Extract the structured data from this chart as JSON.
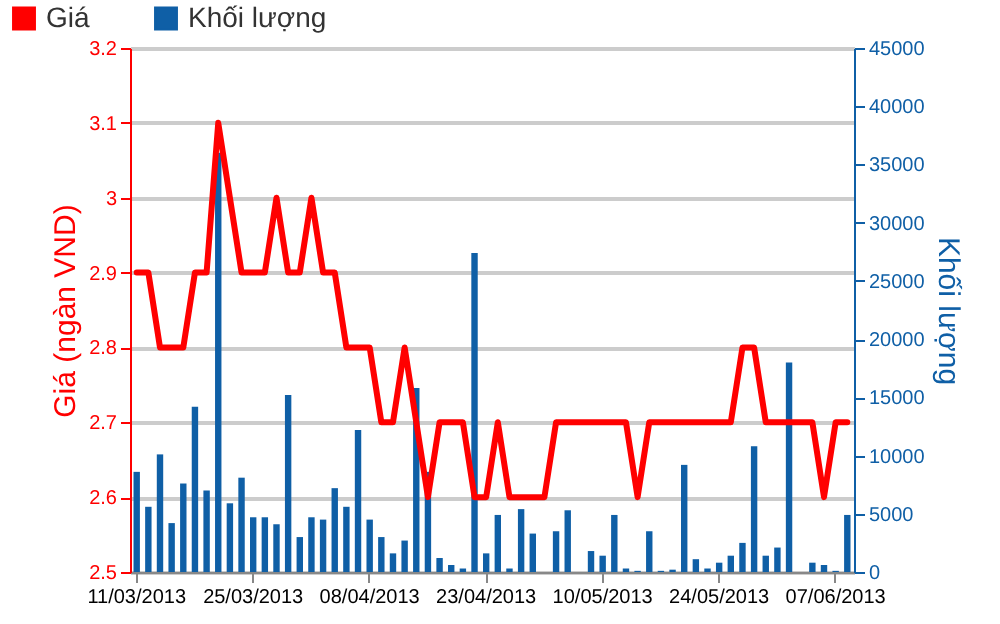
{
  "chart_data": {
    "type": "line",
    "ylabel": "Giá (ngàn VND)",
    "y2label": "Khối lượng",
    "categories": [
      "11/03/2013",
      null,
      null,
      null,
      null,
      null,
      null,
      null,
      null,
      null,
      "25/03/2013",
      null,
      null,
      null,
      null,
      null,
      null,
      null,
      null,
      null,
      "08/04/2013",
      null,
      null,
      null,
      null,
      null,
      null,
      null,
      null,
      null,
      "23/04/2013",
      null,
      null,
      null,
      null,
      null,
      null,
      null,
      null,
      null,
      "10/05/2013",
      null,
      null,
      null,
      null,
      null,
      null,
      null,
      null,
      null,
      "24/05/2013",
      null,
      null,
      null,
      null,
      null,
      null,
      null,
      null,
      null,
      "07/06/2013",
      null
    ],
    "series": [
      {
        "name": "Giá",
        "color": "#ff0000",
        "values": [
          2.9,
          2.9,
          2.8,
          2.8,
          2.8,
          2.9,
          2.9,
          3.1,
          3.0,
          2.9,
          2.9,
          2.9,
          3.0,
          2.9,
          2.9,
          3.0,
          2.9,
          2.9,
          2.8,
          2.8,
          2.8,
          2.7,
          2.7,
          2.8,
          2.7,
          2.6,
          2.7,
          2.7,
          2.7,
          2.6,
          2.6,
          2.7,
          2.6,
          2.6,
          2.6,
          2.6,
          2.7,
          2.7,
          2.7,
          2.7,
          2.7,
          2.7,
          2.7,
          2.6,
          2.7,
          2.7,
          2.7,
          2.7,
          2.7,
          2.7,
          2.7,
          2.7,
          2.8,
          2.8,
          2.7,
          2.7,
          2.7,
          2.7,
          2.7,
          2.6,
          2.7,
          2.7
        ]
      },
      {
        "name": "Khối lượng",
        "type": "bar",
        "axis": "y2",
        "color": "#0f5fa6",
        "values": [
          8600,
          5600,
          10100,
          4200,
          7600,
          14200,
          7000,
          36000,
          5900,
          8100,
          4700,
          4700,
          4100,
          15200,
          3000,
          4700,
          4500,
          7200,
          5600,
          12200,
          4500,
          3000,
          1600,
          2700,
          15800,
          8600,
          1200,
          600,
          300,
          27400,
          1600,
          4900,
          300,
          5400,
          3300,
          0,
          3500,
          5300,
          0,
          1800,
          1400,
          4900,
          300,
          100,
          3500,
          100,
          200,
          9200,
          1100,
          300,
          800,
          1400,
          2500,
          10800,
          1400,
          2100,
          18000,
          0,
          800,
          600,
          100,
          4900
        ]
      }
    ],
    "ylim": [
      2.5,
      3.2
    ],
    "yticks": [
      2.5,
      2.6,
      2.7,
      2.8,
      2.9,
      3,
      3.1,
      3.2
    ],
    "y2lim": [
      0,
      45000
    ],
    "y2ticks": [
      0,
      5000,
      10000,
      15000,
      20000,
      25000,
      30000,
      35000,
      40000,
      45000
    ],
    "grid": "y",
    "legend": "top left"
  }
}
